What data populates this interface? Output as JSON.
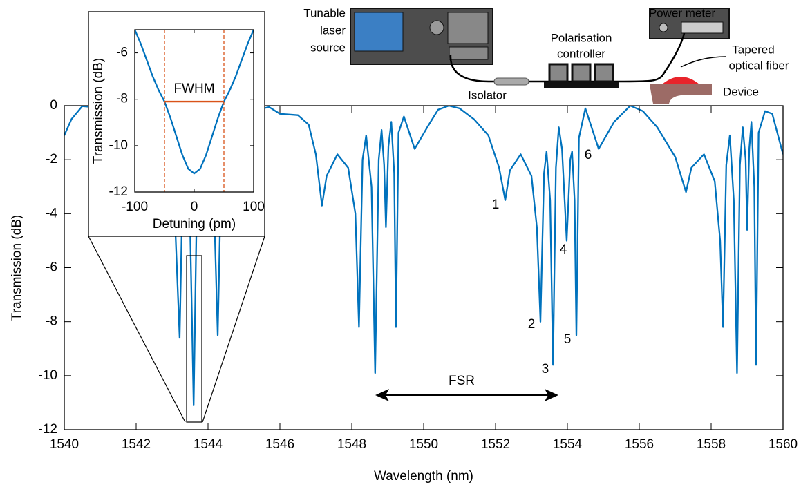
{
  "chart_data": [
    {
      "type": "line",
      "xlabel": "Wavelength (nm)",
      "ylabel": "Transmission (dB)",
      "xlim": [
        1540,
        1560
      ],
      "ylim": [
        -12,
        0
      ],
      "xticks": [
        1540,
        1542,
        1544,
        1546,
        1548,
        1550,
        1552,
        1554,
        1556,
        1558,
        1560
      ],
      "yticks": [
        0,
        -2,
        -4,
        -6,
        -8,
        -10,
        -12
      ],
      "grid": false,
      "annotations": [
        "1",
        "2",
        "3",
        "4",
        "5",
        "6",
        "FSR"
      ],
      "series": [
        {
          "color": "#0072bd",
          "x": [
            1540.0,
            1540.2,
            1540.5,
            1540.8,
            1541.0,
            1541.5,
            1541.9,
            1542.1,
            1542.5,
            1542.9,
            1543.0,
            1543.21,
            1543.32,
            1543.45,
            1543.6,
            1543.72,
            1543.85,
            1543.95,
            1544.1,
            1544.27,
            1544.4,
            1544.7,
            1545.2,
            1545.7,
            1546.0,
            1546.5,
            1546.8,
            1547.0,
            1547.17,
            1547.3,
            1547.6,
            1547.9,
            1548.1,
            1548.2,
            1548.3,
            1548.4,
            1548.55,
            1548.65,
            1548.75,
            1548.83,
            1548.9,
            1548.95,
            1549.02,
            1549.1,
            1549.18,
            1549.23,
            1549.3,
            1549.45,
            1549.75,
            1550.1,
            1550.4,
            1550.7,
            1551.0,
            1551.4,
            1551.8,
            1552.1,
            1552.27,
            1552.4,
            1552.7,
            1553.0,
            1553.15,
            1553.25,
            1553.35,
            1553.42,
            1553.52,
            1553.6,
            1553.68,
            1553.76,
            1553.85,
            1553.98,
            1554.08,
            1554.13,
            1554.2,
            1554.25,
            1554.32,
            1554.5,
            1554.87,
            1555.3,
            1555.75,
            1556.1,
            1556.5,
            1557.0,
            1557.3,
            1557.45,
            1557.8,
            1558.1,
            1558.25,
            1558.33,
            1558.42,
            1558.52,
            1558.63,
            1558.72,
            1558.8,
            1558.88,
            1558.96,
            1559.0,
            1559.06,
            1559.12,
            1559.2,
            1559.25,
            1559.32,
            1559.5,
            1559.7,
            1560.0
          ],
          "values": [
            -1.1,
            -0.5,
            -0.02,
            -0.05,
            -0.3,
            -1.0,
            -1.8,
            -3.7,
            -1.8,
            -2.5,
            -1.5,
            -8.6,
            -1.2,
            -1.0,
            -11.1,
            -0.9,
            -4.5,
            -0.6,
            -0.6,
            -8.5,
            -0.3,
            -1.6,
            -0.2,
            -0.05,
            -0.3,
            -0.35,
            -0.7,
            -1.8,
            -3.7,
            -2.6,
            -1.8,
            -2.3,
            -4.0,
            -8.2,
            -2.0,
            -1.1,
            -3.0,
            -9.9,
            -2.0,
            -0.9,
            -2.2,
            -4.5,
            -1.5,
            -0.6,
            -2.5,
            -8.2,
            -1.0,
            -0.4,
            -1.6,
            -0.8,
            -0.15,
            0,
            -0.1,
            -0.5,
            -1.1,
            -2.3,
            -3.5,
            -2.4,
            -1.8,
            -2.6,
            -4.5,
            -8.0,
            -2.5,
            -1.7,
            -3.5,
            -9.6,
            -2.3,
            -0.8,
            -1.6,
            -5.0,
            -2.0,
            -1.7,
            -3.5,
            -8.5,
            -1.2,
            -0.1,
            -1.6,
            -0.6,
            0,
            -0.2,
            -0.8,
            -1.9,
            -3.2,
            -2.3,
            -1.8,
            -2.8,
            -5.0,
            -8.2,
            -2.2,
            -1.1,
            -3.5,
            -9.9,
            -2.2,
            -0.8,
            -2.0,
            -4.6,
            -1.6,
            -0.6,
            -3.0,
            -9.6,
            -1.0,
            -0.2,
            -0.3,
            -1.8
          ]
        }
      ]
    },
    {
      "type": "line",
      "xlabel": "Detuning (pm)",
      "ylabel": "Transmission (dB)",
      "xlim": [
        -100,
        100
      ],
      "ylim": [
        -12,
        -5
      ],
      "xticks": [
        -100,
        0,
        100
      ],
      "yticks": [
        -6,
        -8,
        -10,
        -12
      ],
      "grid": false,
      "fwhm_label": "FWHM",
      "fwhm_bounds": [
        -50,
        50
      ],
      "fwhm_level": -8.1,
      "fwhm_color": "#d95319",
      "series": [
        {
          "color": "#0072bd",
          "x": [
            -100,
            -90,
            -80,
            -70,
            -60,
            -50,
            -40,
            -30,
            -20,
            -10,
            0,
            10,
            20,
            30,
            40,
            50,
            60,
            70,
            80,
            90,
            100
          ],
          "values": [
            -5,
            -5.6,
            -6.3,
            -7.0,
            -7.6,
            -8.1,
            -8.8,
            -9.6,
            -10.4,
            -11.0,
            -11.2,
            -11.0,
            -10.4,
            -9.6,
            -8.8,
            -8.1,
            -7.6,
            -7.0,
            -6.3,
            -5.6,
            -5
          ]
        }
      ]
    }
  ],
  "schematic": {
    "laser": [
      "Tunable",
      "laser",
      "source"
    ],
    "power_meter": "Power meter",
    "controller": [
      "Polarisation",
      "controller"
    ],
    "fiber": [
      "Tapered",
      "optical fiber"
    ],
    "isolator": "Isolator",
    "device": "Device"
  }
}
